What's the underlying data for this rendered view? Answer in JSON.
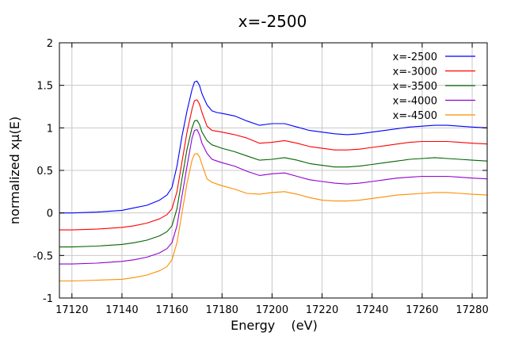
{
  "chart_data": {
    "type": "line",
    "title": "x=-2500",
    "xlabel": "Energy    (eV)",
    "ylabel": "normalized xμ(E)",
    "xlim": [
      17115,
      17286
    ],
    "ylim": [
      -1,
      2
    ],
    "xticks": [
      17120,
      17140,
      17160,
      17180,
      17200,
      17220,
      17240,
      17260,
      17280
    ],
    "yticks": [
      -1,
      -0.5,
      0,
      0.5,
      1,
      1.5,
      2
    ],
    "ytick_labels": [
      "-1",
      "-0.5",
      "0",
      "0.5",
      "1",
      "1.5",
      "2"
    ],
    "grid": true,
    "legend_position": "top-right",
    "x": [
      17115,
      17120,
      17130,
      17140,
      17145,
      17150,
      17155,
      17158,
      17160,
      17162,
      17164,
      17166,
      17168,
      17169,
      17170,
      17171,
      17172,
      17174,
      17176,
      17178,
      17180,
      17185,
      17190,
      17195,
      17200,
      17205,
      17210,
      17215,
      17220,
      17225,
      17230,
      17235,
      17240,
      17245,
      17250,
      17255,
      17260,
      17265,
      17270,
      17275,
      17280,
      17286
    ],
    "series": [
      {
        "name": "x=-2500",
        "color": "#0000ff",
        "values": [
          0.0,
          0.0,
          0.01,
          0.03,
          0.06,
          0.09,
          0.15,
          0.21,
          0.3,
          0.55,
          0.9,
          1.2,
          1.45,
          1.54,
          1.55,
          1.5,
          1.4,
          1.27,
          1.2,
          1.18,
          1.17,
          1.14,
          1.08,
          1.03,
          1.05,
          1.05,
          1.01,
          0.97,
          0.95,
          0.93,
          0.92,
          0.93,
          0.95,
          0.97,
          0.99,
          1.01,
          1.02,
          1.03,
          1.03,
          1.02,
          1.01,
          1.0
        ]
      },
      {
        "name": "x=-3000",
        "color": "#ff0000",
        "values": [
          -0.2,
          -0.2,
          -0.19,
          -0.17,
          -0.15,
          -0.12,
          -0.07,
          -0.02,
          0.05,
          0.25,
          0.6,
          0.95,
          1.22,
          1.32,
          1.33,
          1.28,
          1.18,
          1.02,
          0.97,
          0.96,
          0.95,
          0.92,
          0.88,
          0.82,
          0.83,
          0.85,
          0.82,
          0.78,
          0.76,
          0.74,
          0.74,
          0.75,
          0.77,
          0.79,
          0.81,
          0.83,
          0.84,
          0.84,
          0.84,
          0.83,
          0.82,
          0.81
        ]
      },
      {
        "name": "x=-3500",
        "color": "#006400",
        "values": [
          -0.4,
          -0.4,
          -0.39,
          -0.37,
          -0.35,
          -0.32,
          -0.27,
          -0.22,
          -0.15,
          0.05,
          0.4,
          0.75,
          1.0,
          1.08,
          1.09,
          1.04,
          0.95,
          0.85,
          0.8,
          0.78,
          0.76,
          0.72,
          0.67,
          0.62,
          0.63,
          0.65,
          0.62,
          0.58,
          0.56,
          0.54,
          0.54,
          0.55,
          0.57,
          0.59,
          0.61,
          0.63,
          0.64,
          0.65,
          0.64,
          0.63,
          0.62,
          0.61
        ]
      },
      {
        "name": "x=-4000",
        "color": "#9400d3",
        "values": [
          -0.6,
          -0.6,
          -0.59,
          -0.57,
          -0.55,
          -0.52,
          -0.47,
          -0.42,
          -0.35,
          -0.15,
          0.2,
          0.55,
          0.88,
          0.97,
          0.98,
          0.92,
          0.82,
          0.7,
          0.63,
          0.61,
          0.59,
          0.55,
          0.49,
          0.44,
          0.46,
          0.47,
          0.43,
          0.39,
          0.37,
          0.35,
          0.34,
          0.35,
          0.37,
          0.39,
          0.41,
          0.42,
          0.43,
          0.43,
          0.43,
          0.42,
          0.41,
          0.4
        ]
      },
      {
        "name": "x=-4500",
        "color": "#ff8c00",
        "values": [
          -0.8,
          -0.8,
          -0.79,
          -0.78,
          -0.76,
          -0.73,
          -0.68,
          -0.63,
          -0.55,
          -0.35,
          0.0,
          0.35,
          0.62,
          0.69,
          0.7,
          0.66,
          0.57,
          0.4,
          0.36,
          0.34,
          0.32,
          0.28,
          0.23,
          0.22,
          0.24,
          0.25,
          0.22,
          0.18,
          0.15,
          0.14,
          0.14,
          0.15,
          0.17,
          0.19,
          0.21,
          0.22,
          0.23,
          0.24,
          0.24,
          0.23,
          0.22,
          0.21
        ]
      }
    ]
  }
}
